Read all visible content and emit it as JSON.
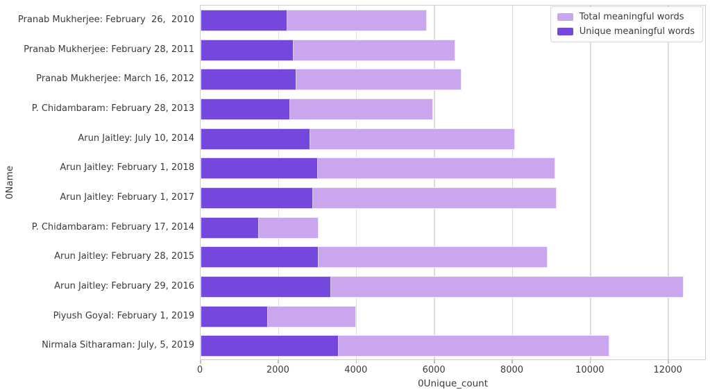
{
  "chart_data": {
    "type": "bar",
    "orientation": "horizontal",
    "title": "",
    "xlabel": "0Unique_count",
    "ylabel": "0Name",
    "grid": true,
    "xlim": [
      0,
      12975
    ],
    "xticks": [
      0,
      2000,
      4000,
      6000,
      8000,
      10000,
      12000
    ],
    "categories": [
      "Pranab Mukherjee: February  26,  2010",
      "Pranab Mukherjee: February 28, 2011",
      "Pranab Mukherjee: March 16, 2012",
      "P. Chidambaram: February 28, 2013",
      "Arun Jaitley: July 10, 2014",
      "Arun Jaitley: February 1, 2018",
      "Arun Jaitley: February 1, 2017",
      "P. Chidambaram: February 17, 2014",
      "Arun Jaitley: February 28, 2015",
      "Arun Jaitley: February 29, 2016",
      "Piyush Goyal: February 1, 2019",
      "Nirmala Sitharaman: July, 5, 2019"
    ],
    "series": [
      {
        "name": "Total meaningful words",
        "color": "#c9a6ee",
        "values": [
          5800,
          6540,
          6690,
          5960,
          8070,
          9100,
          9130,
          3030,
          8900,
          12390,
          3990,
          10490
        ]
      },
      {
        "name": "Unique meaningful words",
        "color": "#7448dd",
        "values": [
          2220,
          2380,
          2450,
          2300,
          2820,
          3010,
          2880,
          1490,
          3030,
          3350,
          1730,
          3540
        ]
      }
    ],
    "legend": {
      "position": "upper right",
      "entries": [
        "Total meaningful words",
        "Unique meaningful words"
      ]
    }
  }
}
